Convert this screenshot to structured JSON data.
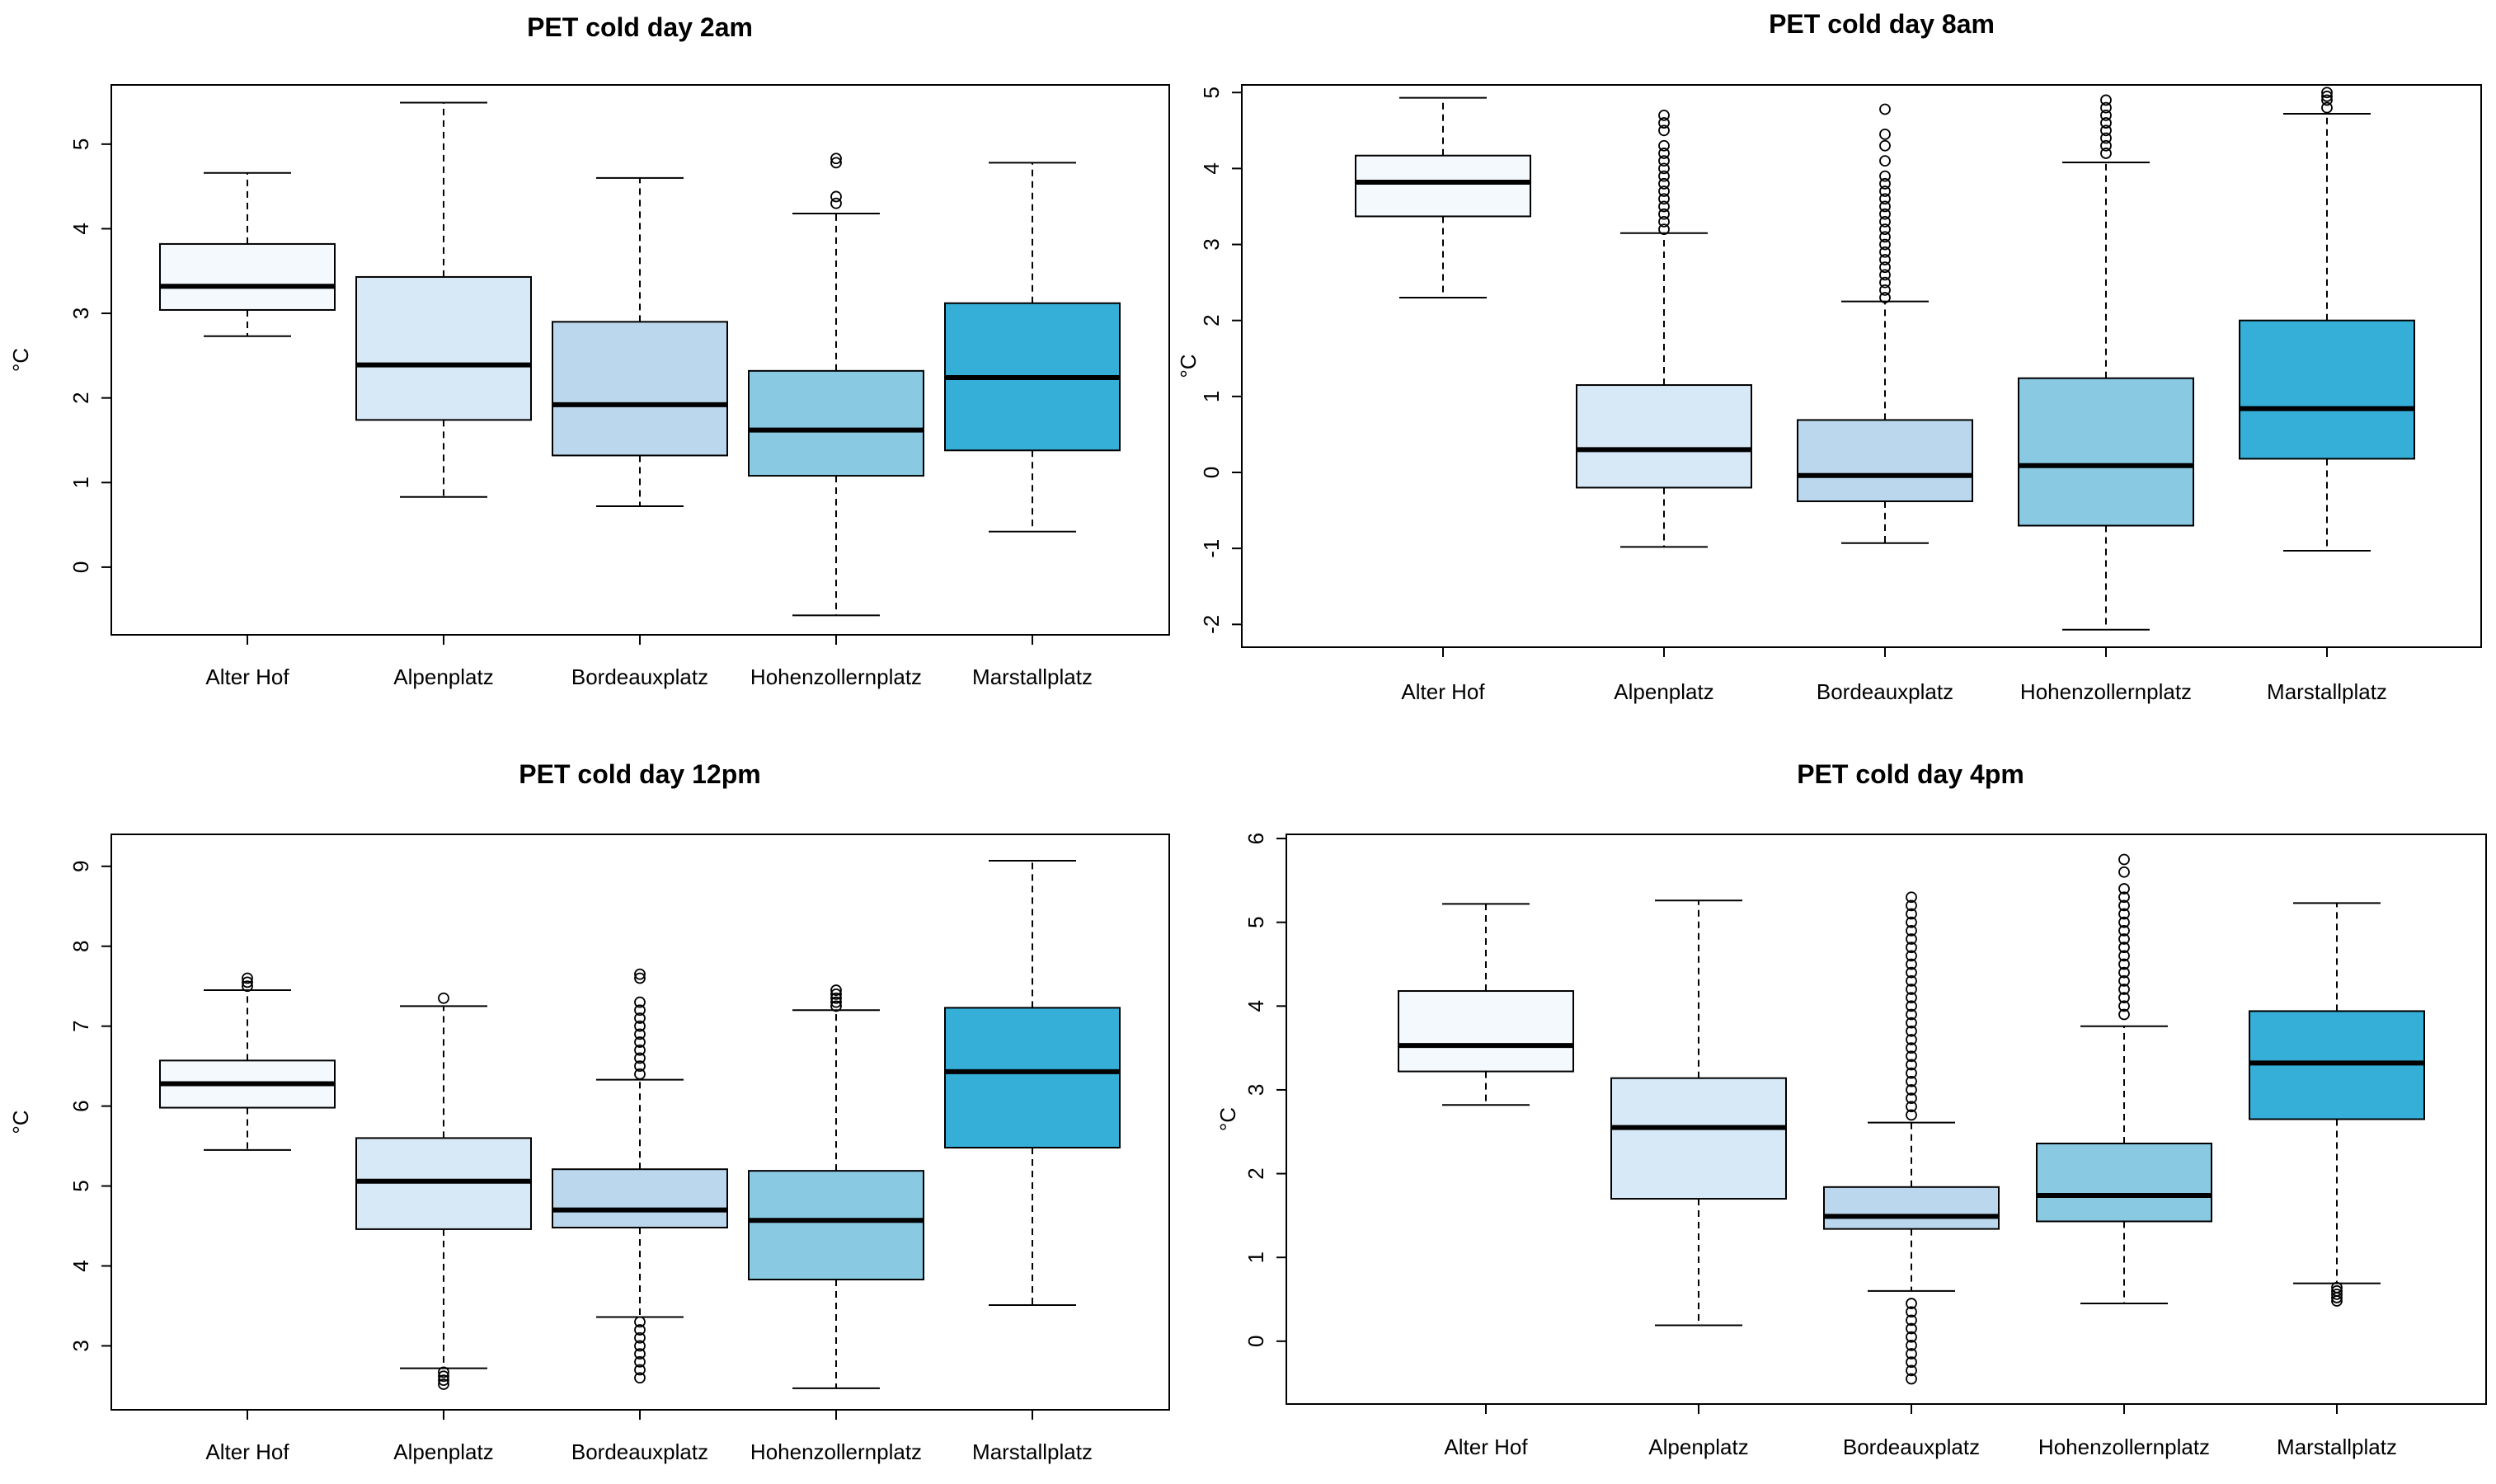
{
  "chart_data": [
    {
      "type": "boxplot",
      "title": "PET cold day 2am",
      "ylabel": "°C",
      "ylim": [
        -0.8,
        5.7
      ],
      "yticks": [
        "0",
        "1",
        "2",
        "3",
        "4",
        "5"
      ],
      "categories": [
        "Alter Hof",
        "Alpenplatz",
        "Bordeauxplatz",
        "Hohenzollernplatz",
        "Marstallplatz"
      ],
      "colors": [
        "#f4f9fe",
        "#d7e8f6",
        "#bad7ee",
        "#89c9e2",
        "#35afd8"
      ],
      "boxes": [
        {
          "category": "Alter Hof",
          "whisker_low": 2.73,
          "q1": 3.04,
          "median": 3.32,
          "q3": 3.82,
          "whisker_high": 4.66,
          "outliers": []
        },
        {
          "category": "Alpenplatz",
          "whisker_low": 0.83,
          "q1": 1.74,
          "median": 2.39,
          "q3": 3.43,
          "whisker_high": 5.49,
          "outliers": []
        },
        {
          "category": "Bordeauxplatz",
          "whisker_low": 0.72,
          "q1": 1.32,
          "median": 1.92,
          "q3": 2.9,
          "whisker_high": 4.6,
          "outliers": []
        },
        {
          "category": "Hohenzollernplatz",
          "whisker_low": -0.57,
          "q1": 1.08,
          "median": 1.62,
          "q3": 2.32,
          "whisker_high": 4.18,
          "outliers": [
            4.3,
            4.38,
            4.78,
            4.83
          ]
        },
        {
          "category": "Marstallplatz",
          "whisker_low": 0.42,
          "q1": 1.38,
          "median": 2.24,
          "q3": 3.12,
          "whisker_high": 4.78,
          "outliers": []
        }
      ]
    },
    {
      "type": "boxplot",
      "title": "PET cold day 8am",
      "ylabel": "°C",
      "ylim": [
        -2.3,
        5.1
      ],
      "yticks": [
        "-2",
        "-1",
        "0",
        "1",
        "2",
        "3",
        "4",
        "5"
      ],
      "categories": [
        "Alter Hof",
        "Alpenplatz",
        "Bordeauxplatz",
        "Hohenzollernplatz",
        "Marstallplatz"
      ],
      "colors": [
        "#f4f9fe",
        "#d7e8f6",
        "#bad7ee",
        "#89c9e2",
        "#35afd8"
      ],
      "boxes": [
        {
          "category": "Alter Hof",
          "whisker_low": 2.3,
          "q1": 3.37,
          "median": 3.82,
          "q3": 4.17,
          "whisker_high": 4.93,
          "outliers": []
        },
        {
          "category": "Alpenplatz",
          "whisker_low": -0.98,
          "q1": -0.2,
          "median": 0.3,
          "q3": 1.15,
          "whisker_high": 3.15,
          "outliers": [
            3.2,
            3.3,
            3.4,
            3.5,
            3.6,
            3.7,
            3.8,
            3.9,
            4.0,
            4.1,
            4.2,
            4.3,
            4.5,
            4.6,
            4.7
          ]
        },
        {
          "category": "Bordeauxplatz",
          "whisker_low": -0.93,
          "q1": -0.38,
          "median": -0.04,
          "q3": 0.69,
          "whisker_high": 2.25,
          "outliers": [
            2.3,
            2.4,
            2.5,
            2.6,
            2.7,
            2.8,
            2.9,
            3.0,
            3.1,
            3.2,
            3.3,
            3.4,
            3.5,
            3.6,
            3.7,
            3.8,
            3.9,
            4.1,
            4.3,
            4.45,
            4.78
          ]
        },
        {
          "category": "Hohenzollernplatz",
          "whisker_low": -2.07,
          "q1": -0.7,
          "median": 0.09,
          "q3": 1.24,
          "whisker_high": 4.08,
          "outliers": [
            4.2,
            4.3,
            4.4,
            4.5,
            4.6,
            4.7,
            4.8,
            4.9
          ]
        },
        {
          "category": "Marstallplatz",
          "whisker_low": -1.03,
          "q1": 0.18,
          "median": 0.84,
          "q3": 2.0,
          "whisker_high": 4.72,
          "outliers": [
            4.8,
            4.9,
            4.95,
            5.0
          ]
        }
      ]
    },
    {
      "type": "boxplot",
      "title": "PET cold day 12pm",
      "ylabel": "°C",
      "ylim": [
        2.2,
        9.4
      ],
      "yticks": [
        "3",
        "4",
        "5",
        "6",
        "7",
        "8",
        "9"
      ],
      "categories": [
        "Alter Hof",
        "Alpenplatz",
        "Bordeauxplatz",
        "Hohenzollernplatz",
        "Marstallplatz"
      ],
      "colors": [
        "#f4f9fe",
        "#d7e8f6",
        "#bad7ee",
        "#89c9e2",
        "#35afd8"
      ],
      "boxes": [
        {
          "category": "Alter Hof",
          "whisker_low": 5.45,
          "q1": 5.98,
          "median": 6.28,
          "q3": 6.57,
          "whisker_high": 7.45,
          "outliers": [
            7.5,
            7.55,
            7.6
          ]
        },
        {
          "category": "Alpenplatz",
          "whisker_low": 2.72,
          "q1": 4.46,
          "median": 5.06,
          "q3": 5.6,
          "whisker_high": 7.25,
          "outliers": [
            2.52,
            2.57,
            2.62,
            2.67,
            7.35
          ]
        },
        {
          "category": "Bordeauxplatz",
          "whisker_low": 3.36,
          "q1": 4.48,
          "median": 4.7,
          "q3": 5.21,
          "whisker_high": 6.33,
          "outliers": [
            2.6,
            2.7,
            2.8,
            2.9,
            3.0,
            3.1,
            3.2,
            3.3,
            6.4,
            6.5,
            6.6,
            6.7,
            6.8,
            6.9,
            7.0,
            7.1,
            7.2,
            7.3,
            7.6,
            7.65
          ]
        },
        {
          "category": "Hohenzollernplatz",
          "whisker_low": 2.47,
          "q1": 3.83,
          "median": 4.57,
          "q3": 5.19,
          "whisker_high": 7.2,
          "outliers": [
            7.25,
            7.3,
            7.35,
            7.4,
            7.45
          ]
        },
        {
          "category": "Marstallplatz",
          "whisker_low": 3.51,
          "q1": 5.48,
          "median": 6.43,
          "q3": 7.23,
          "whisker_high": 9.07,
          "outliers": []
        }
      ]
    },
    {
      "type": "boxplot",
      "title": "PET cold day 4pm",
      "ylabel": "°C",
      "ylim": [
        -0.75,
        6.05
      ],
      "yticks": [
        "0",
        "1",
        "2",
        "3",
        "4",
        "5",
        "6"
      ],
      "categories": [
        "Alter Hof",
        "Alpenplatz",
        "Bordeauxplatz",
        "Hohenzollernplatz",
        "Marstallplatz"
      ],
      "colors": [
        "#f4f9fe",
        "#d7e8f6",
        "#bad7ee",
        "#89c9e2",
        "#35afd8"
      ],
      "boxes": [
        {
          "category": "Alter Hof",
          "whisker_low": 2.82,
          "q1": 3.22,
          "median": 3.53,
          "q3": 4.18,
          "whisker_high": 5.22,
          "outliers": []
        },
        {
          "category": "Alpenplatz",
          "whisker_low": 0.19,
          "q1": 1.7,
          "median": 2.55,
          "q3": 3.14,
          "whisker_high": 5.26,
          "outliers": []
        },
        {
          "category": "Bordeauxplatz",
          "whisker_low": 0.6,
          "q1": 1.34,
          "median": 1.49,
          "q3": 1.84,
          "whisker_high": 2.61,
          "outliers": [
            -0.45,
            -0.35,
            -0.25,
            -0.15,
            -0.05,
            0.05,
            0.15,
            0.25,
            0.35,
            0.45,
            2.7,
            2.8,
            2.9,
            3.0,
            3.1,
            3.2,
            3.3,
            3.4,
            3.5,
            3.6,
            3.7,
            3.8,
            3.9,
            4.0,
            4.1,
            4.2,
            4.3,
            4.4,
            4.5,
            4.6,
            4.7,
            4.8,
            4.9,
            5.0,
            5.1,
            5.2,
            5.3
          ]
        },
        {
          "category": "Hohenzollernplatz",
          "whisker_low": 0.45,
          "q1": 1.43,
          "median": 1.74,
          "q3": 2.36,
          "whisker_high": 3.76,
          "outliers": [
            3.9,
            4.0,
            4.1,
            4.2,
            4.3,
            4.4,
            4.5,
            4.6,
            4.7,
            4.8,
            4.9,
            5.0,
            5.1,
            5.2,
            5.3,
            5.4,
            5.6,
            5.75
          ]
        },
        {
          "category": "Marstallplatz",
          "whisker_low": 0.69,
          "q1": 2.65,
          "median": 3.32,
          "q3": 3.94,
          "whisker_high": 5.23,
          "outliers": [
            0.48,
            0.52,
            0.56,
            0.6,
            0.64
          ]
        }
      ]
    }
  ]
}
